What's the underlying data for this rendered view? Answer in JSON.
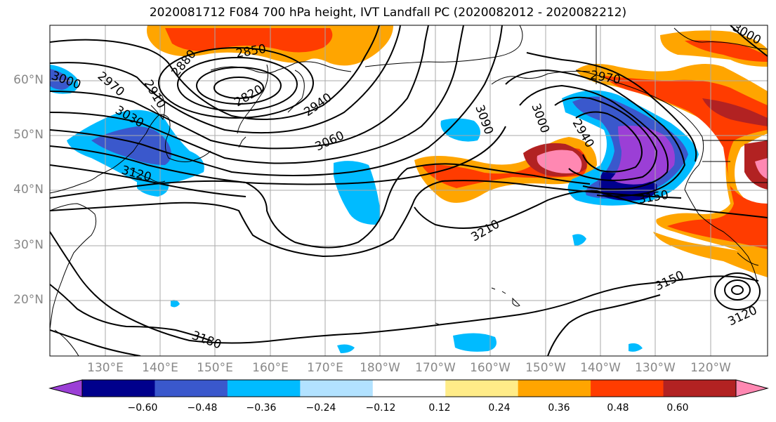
{
  "title": "2020081712 F084 700 hPa height, IVT Landfall PC (2020082012 - 2020082212)",
  "lat_labels": [
    "60°N",
    "50°N",
    "40°N",
    "30°N",
    "20°N"
  ],
  "lon_labels": [
    "130°E",
    "140°E",
    "150°E",
    "160°E",
    "170°E",
    "180°W",
    "170°W",
    "160°W",
    "150°W",
    "140°W",
    "130°W",
    "120°W"
  ],
  "contour_labels": [
    "3000",
    "2970",
    "2910",
    "2880",
    "2850",
    "2820",
    "2940",
    "3060",
    "3030",
    "3120",
    "3090",
    "3000",
    "2970",
    "3000",
    "2940",
    "3150",
    "3210",
    "3150",
    "3120",
    "3180"
  ],
  "colorbar": {
    "ticks": [
      "−0.60",
      "−0.48",
      "−0.36",
      "−0.24",
      "−0.12",
      "0.12",
      "0.24",
      "0.36",
      "0.48",
      "0.60"
    ],
    "colors": [
      "#9b3fd6",
      "#00008c",
      "#3a58cc",
      "#00bbff",
      "#b2e2ff",
      "#ffffff",
      "#ffec88",
      "#ffa500",
      "#ff3c00",
      "#b22222",
      "#ff88b2"
    ]
  },
  "colors": {
    "contour": "#000000",
    "grid": "#aaaaaa",
    "coast": "#000000"
  }
}
